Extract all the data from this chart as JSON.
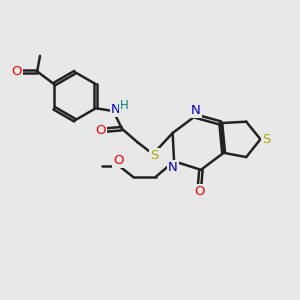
{
  "bg_color": "#e8e8e8",
  "bond_color": "#222222",
  "bond_width": 1.8,
  "dbo": 0.06,
  "atom_colors": {
    "O": "#ff0000",
    "N": "#0000cc",
    "S": "#aaaa00",
    "H": "#008888",
    "C": "#222222"
  },
  "fs": 9.5,
  "xlim": [
    0.0,
    10.5
  ],
  "ylim": [
    0.5,
    10.5
  ]
}
